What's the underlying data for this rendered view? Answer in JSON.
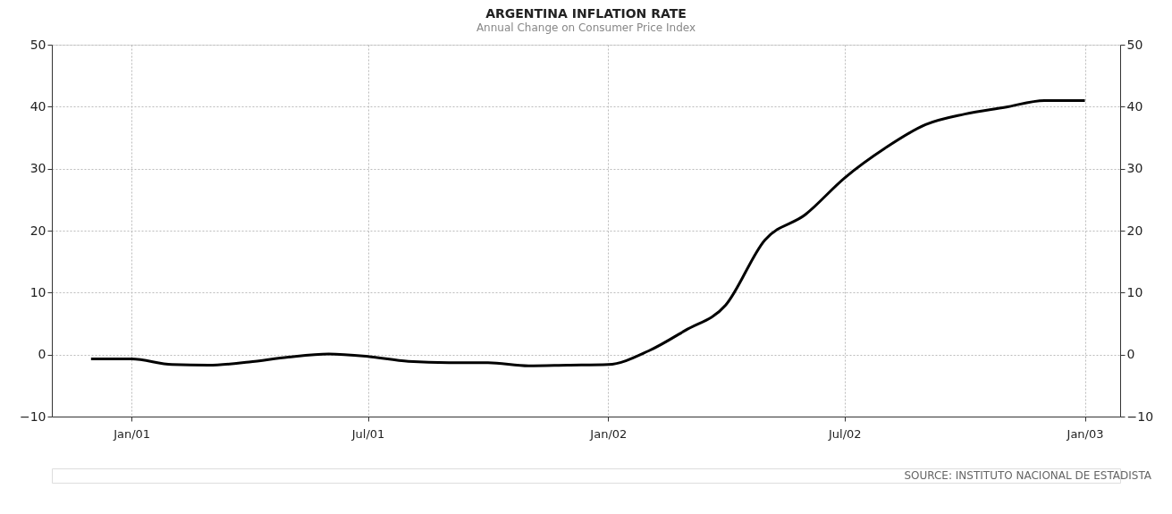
{
  "chart_data": {
    "type": "line",
    "title": "ARGENTINA INFLATION RATE",
    "subtitle": "Annual Change on Consumer Price Index",
    "x": [
      "2000-12",
      "2001-01",
      "2001-02",
      "2001-03",
      "2001-04",
      "2001-05",
      "2001-06",
      "2001-07",
      "2001-08",
      "2001-09",
      "2001-10",
      "2001-11",
      "2001-12",
      "2002-01",
      "2002-02",
      "2002-03",
      "2002-04",
      "2002-05",
      "2002-06",
      "2002-07",
      "2002-08",
      "2002-09",
      "2002-10",
      "2002-11",
      "2002-12",
      "2003-01"
    ],
    "series": [
      {
        "color": "#000000",
        "values": [
          -0.7,
          -0.7,
          -1.6,
          -1.7,
          -1.2,
          -0.4,
          0.1,
          -0.3,
          -1.1,
          -1.3,
          -1.3,
          -1.8,
          -1.7,
          -1.6,
          0.6,
          3.9,
          8.0,
          18.5,
          22.6,
          28.5,
          33.3,
          37.1,
          38.8,
          39.9,
          41.0,
          41.0
        ]
      }
    ],
    "xlim": [
      "2000-11",
      "2003-01-28"
    ],
    "xticks": [
      {
        "value": "2001-01",
        "label": "Jan/01"
      },
      {
        "value": "2001-07",
        "label": "Jul/01"
      },
      {
        "value": "2002-01",
        "label": "Jan/02"
      },
      {
        "value": "2002-07",
        "label": "Jul/02"
      },
      {
        "value": "2003-01",
        "label": "Jan/03"
      }
    ],
    "ylim": [
      -10,
      50
    ],
    "yticks": [
      -10,
      0,
      10,
      20,
      30,
      40,
      50
    ],
    "y2lim": [
      -10,
      50
    ],
    "y2ticks": [
      -10,
      0,
      10,
      20,
      30,
      40,
      50
    ],
    "grid": true,
    "legend": false,
    "line_style": "solid",
    "marker": "none",
    "annotations": [
      "SOURCE: INSTITUTO NACIONAL DE ESTADISTA"
    ]
  }
}
